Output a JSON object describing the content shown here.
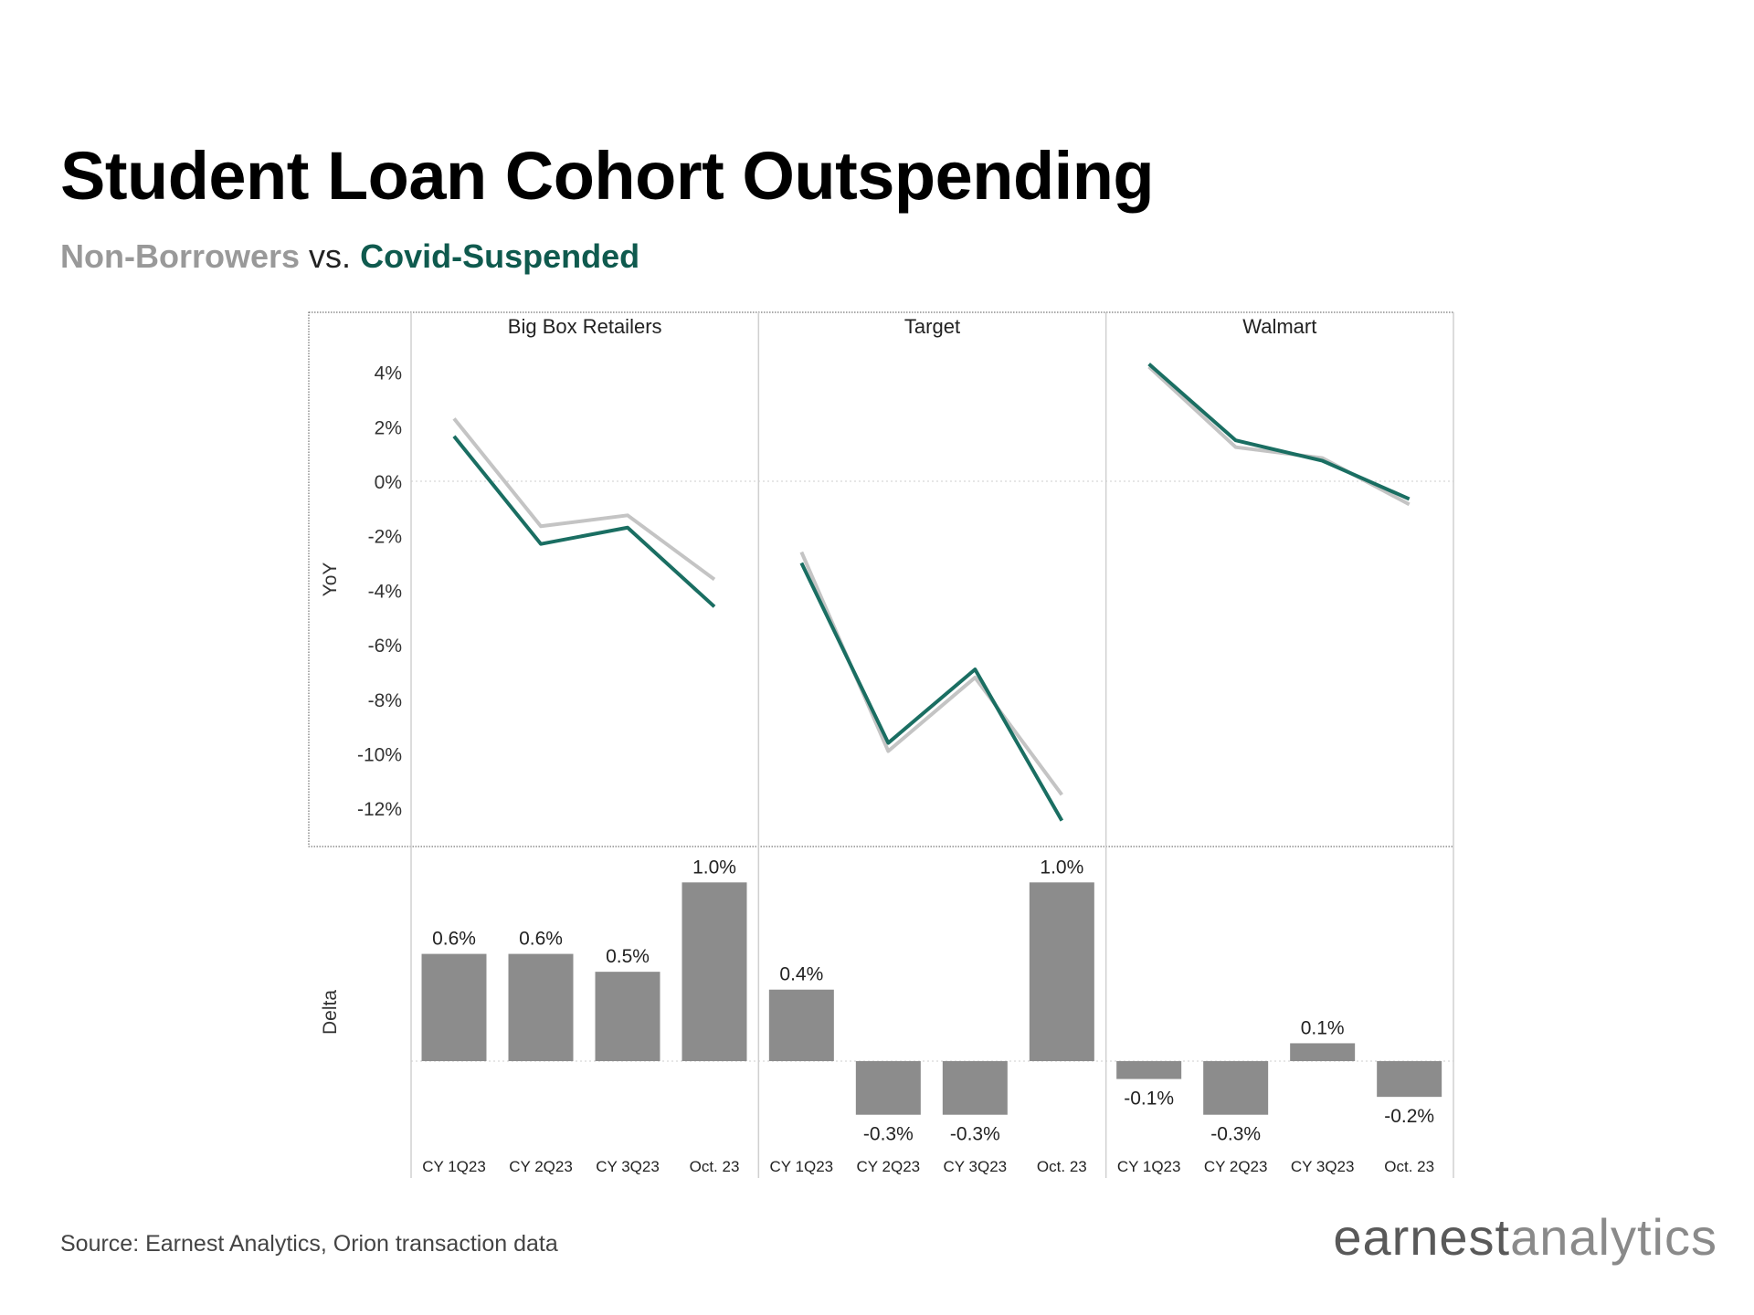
{
  "title": "Student Loan Cohort Outspending",
  "subtitle": {
    "series_a": "Non-Borrowers",
    "vs": "vs.",
    "series_b": "Covid-Suspended"
  },
  "source": "Source: Earnest Analytics, Orion transaction data",
  "logo": {
    "part1": "earnest",
    "part2": "analytics"
  },
  "colors": {
    "non_borrowers": "#c4c4c4",
    "covid_suspended": "#1a6e62",
    "delta_bar": "#8c8c8c",
    "series_a_text": "#999999",
    "series_b_text": "#0f5a4e"
  },
  "chart_data": [
    {
      "type": "line",
      "ylabel": "YoY",
      "ylim": [
        -13.5,
        5.5
      ],
      "yticks": [
        4,
        2,
        0,
        -2,
        -4,
        -6,
        -8,
        -10,
        -12
      ],
      "ytick_labels": [
        "4%",
        "2%",
        "0%",
        "-2%",
        "-4%",
        "-6%",
        "-8%",
        "-10%",
        "-12%"
      ],
      "categories": [
        "CY 1Q23",
        "CY 2Q23",
        "CY 3Q23",
        "Oct. 23"
      ],
      "panels": [
        {
          "name": "Big Box Retailers",
          "series": [
            {
              "name": "Non-Borrowers",
              "values": [
                2.3,
                -1.65,
                -1.25,
                -3.6
              ]
            },
            {
              "name": "Covid-Suspended",
              "values": [
                1.65,
                -2.3,
                -1.7,
                -4.6
              ]
            }
          ]
        },
        {
          "name": "Target",
          "series": [
            {
              "name": "Non-Borrowers",
              "values": [
                -2.6,
                -9.9,
                -7.2,
                -11.5
              ]
            },
            {
              "name": "Covid-Suspended",
              "values": [
                -3.0,
                -9.6,
                -6.9,
                -12.45
              ]
            }
          ]
        },
        {
          "name": "Walmart",
          "series": [
            {
              "name": "Non-Borrowers",
              "values": [
                4.2,
                1.25,
                0.85,
                -0.85
              ]
            },
            {
              "name": "Covid-Suspended",
              "values": [
                4.3,
                1.5,
                0.75,
                -0.65
              ]
            }
          ]
        }
      ],
      "grid": "zero line dotted"
    },
    {
      "type": "bar",
      "ylabel": "Delta",
      "ylim": [
        -0.8,
        1.1
      ],
      "categories": [
        "CY 1Q23",
        "CY 2Q23",
        "CY 3Q23",
        "Oct. 23"
      ],
      "panels": [
        {
          "name": "Big Box Retailers",
          "values": [
            0.6,
            0.6,
            0.5,
            1.0
          ],
          "labels": [
            "0.6%",
            "0.6%",
            "0.5%",
            "1.0%"
          ]
        },
        {
          "name": "Target",
          "values": [
            0.4,
            -0.3,
            -0.3,
            1.0
          ],
          "labels": [
            "0.4%",
            "-0.3%",
            "-0.3%",
            "1.0%"
          ]
        },
        {
          "name": "Walmart",
          "values": [
            -0.1,
            -0.3,
            0.1,
            -0.2
          ],
          "labels": [
            "-0.1%",
            "-0.3%",
            "0.1%",
            "-0.2%"
          ]
        }
      ]
    }
  ]
}
